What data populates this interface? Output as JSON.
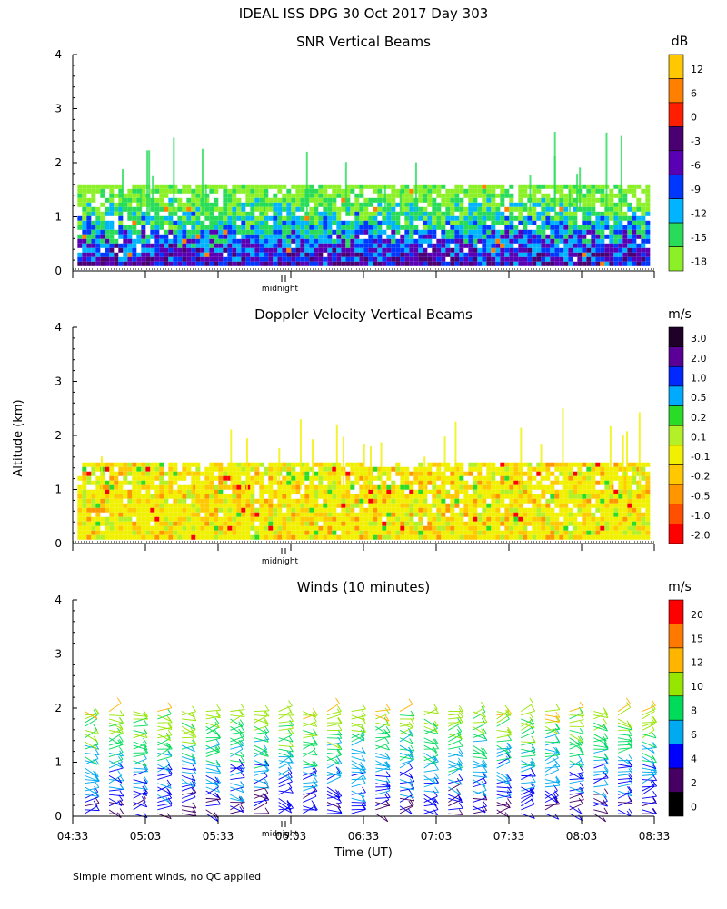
{
  "title": "IDEAL ISS DPG  30 Oct 2017 Day 303",
  "ylabel": "Altitude (km)",
  "xlabel": "Time (UT)",
  "midnight_label": "midnight",
  "footnote": "Simple moment winds, no QC applied",
  "y_ticks": [
    "0",
    "1",
    "2",
    "3",
    "4"
  ],
  "x_ticks": [
    "04:33",
    "05:03",
    "05:33",
    "06:03",
    "06:33",
    "07:03",
    "07:33",
    "08:03",
    "08:33"
  ],
  "chart_data": [
    {
      "type": "heatmap",
      "title": "SNR Vertical Beams",
      "units": "dB",
      "xlim": [
        "04:33",
        "08:33"
      ],
      "ylim": [
        0,
        4
      ],
      "colorbar": {
        "labels": [
          "12",
          "6",
          "0",
          "-3",
          "-6",
          "-9",
          "-12",
          "-15",
          "-18"
        ],
        "colors": [
          "#ffc800",
          "#ff8000",
          "#ff1e00",
          "#4a0070",
          "#5a00b4",
          "#0037ff",
          "#00b4ff",
          "#28dc5a",
          "#8cf028"
        ]
      },
      "data_extent": {
        "start": "04:35",
        "end": "08:30",
        "top_km": 1.6
      }
    },
    {
      "type": "heatmap",
      "title": "Doppler Velocity Vertical Beams",
      "units": "m/s",
      "xlim": [
        "04:33",
        "08:33"
      ],
      "ylim": [
        0,
        4
      ],
      "colorbar": {
        "labels": [
          "3.0",
          "2.0",
          "1.0",
          "0.5",
          "0.2",
          "0.1",
          "-0.1",
          "-0.2",
          "-0.5",
          "-1.0",
          "-2.0"
        ],
        "colors": [
          "#1e0028",
          "#5a0096",
          "#0028ff",
          "#00aaff",
          "#28dc28",
          "#b4f028",
          "#f0f000",
          "#ffc800",
          "#ff9600",
          "#ff5000",
          "#ff0000"
        ]
      },
      "data_extent": {
        "start": "04:35",
        "end": "08:30",
        "top_km": 1.5
      }
    },
    {
      "type": "wind_barbs",
      "title": "Winds (10 minutes)",
      "units": "m/s",
      "xlim": [
        "04:33",
        "08:33"
      ],
      "ylim": [
        0,
        4
      ],
      "colorbar": {
        "labels": [
          "20",
          "15",
          "12",
          "10",
          "8",
          "6",
          "4",
          "2",
          "0"
        ],
        "colors": [
          "#ff0000",
          "#ff7800",
          "#ffb400",
          "#96e600",
          "#00dc5a",
          "#00aaf0",
          "#0000ff",
          "#460064",
          "#000000"
        ]
      },
      "profiles_start": "04:33",
      "profile_interval_min": 10,
      "profile_count": 24,
      "max_altitude_km": 2.0
    }
  ]
}
